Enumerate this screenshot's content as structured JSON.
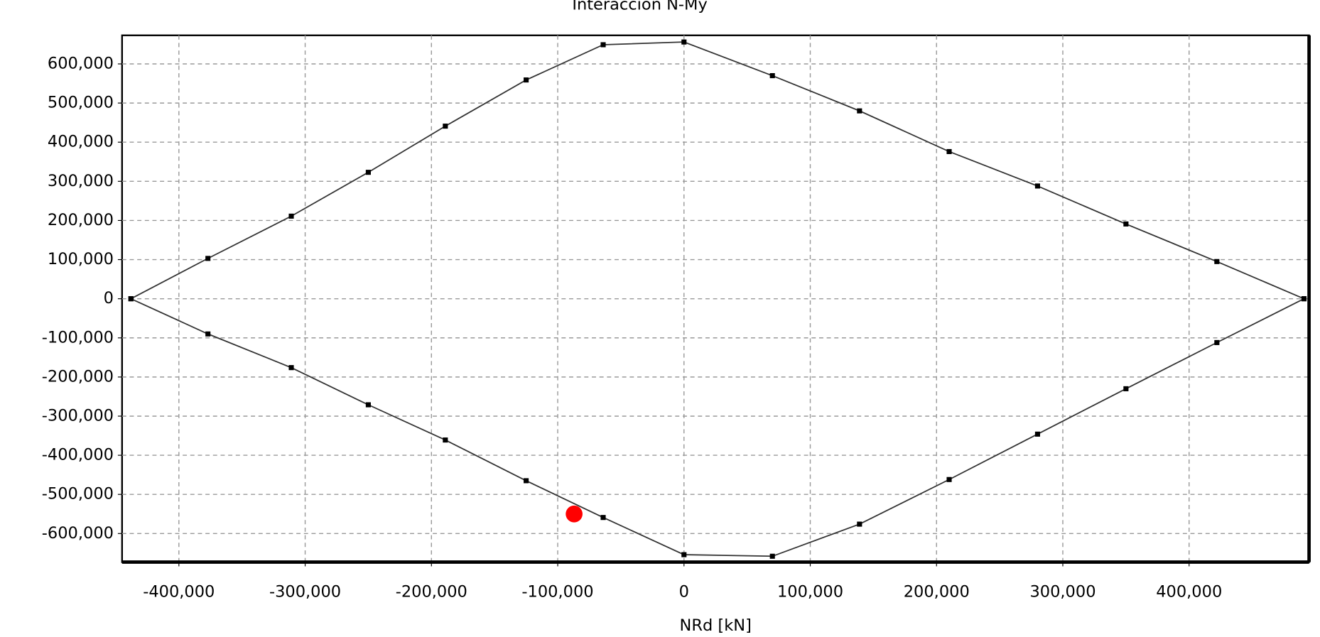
{
  "chart_data": {
    "type": "scatter",
    "title": "Interacción N-My",
    "x_label": "NRd [kN]",
    "xlim": [
      -445000,
      495000
    ],
    "ylim": [
      -673000,
      673000
    ],
    "xticks": [
      {
        "value": -400000,
        "label": "-400,000"
      },
      {
        "value": -300000,
        "label": "-300,000"
      },
      {
        "value": -200000,
        "label": "-200,000"
      },
      {
        "value": -100000,
        "label": "-100,000"
      },
      0,
      {
        "value": 100000,
        "label": "100,000"
      },
      {
        "value": 200000,
        "label": "200,000"
      },
      {
        "value": 300000,
        "label": "300,000"
      },
      {
        "value": 400000,
        "label": "400,000"
      }
    ],
    "yticks": [
      {
        "value": -600000,
        "label": "-600,000"
      },
      {
        "value": -500000,
        "label": "-500,000"
      },
      {
        "value": -400000,
        "label": "-400,000"
      },
      {
        "value": -300000,
        "label": "-300,000"
      },
      {
        "value": -200000,
        "label": "-200,000"
      },
      {
        "value": -100000,
        "label": "-100,000"
      },
      0,
      {
        "value": 100000,
        "label": "100,000"
      },
      {
        "value": 200000,
        "label": "200,000"
      },
      {
        "value": 300000,
        "label": "300,000"
      },
      {
        "value": 400000,
        "label": "400,000"
      },
      {
        "value": 500000,
        "label": "500,000"
      },
      {
        "value": 600000,
        "label": "600,000"
      }
    ],
    "grid": true,
    "series": [
      {
        "color": "#333333",
        "line": true,
        "x": [
          -438000,
          -377000,
          -311000,
          -250000,
          -189000,
          -125000,
          -64000,
          0,
          70000,
          139000,
          210000,
          280000,
          350000,
          422000,
          491000
        ],
        "values": [
          0,
          103000,
          211000,
          323000,
          441000,
          559000,
          649000,
          656000,
          570000,
          480000,
          376000,
          288000,
          191000,
          95000,
          0
        ]
      },
      {
        "color": "#333333",
        "line": true,
        "x": [
          -438000,
          -377000,
          -311000,
          -250000,
          -189000,
          -125000,
          -64000,
          0,
          70000,
          139000,
          210000,
          280000,
          350000,
          422000,
          491000
        ],
        "values": [
          0,
          -90000,
          -176000,
          -271000,
          -361000,
          -465000,
          -559000,
          -654000,
          -658000,
          -576000,
          -462000,
          -346000,
          -230000,
          -112000,
          0
        ]
      },
      {
        "color": "#ff0000",
        "line": false,
        "x": [
          -87000
        ],
        "values": [
          -550000
        ]
      }
    ]
  }
}
